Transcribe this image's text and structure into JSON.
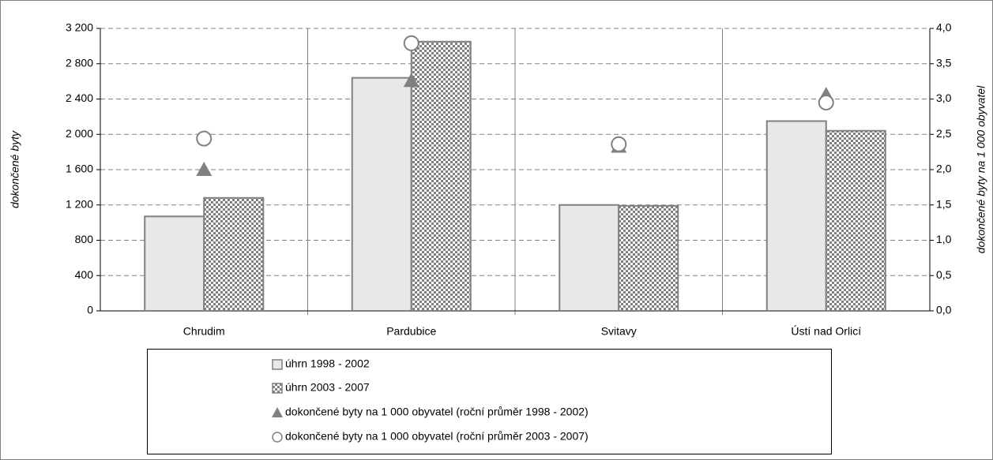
{
  "chart_data": {
    "type": "bar",
    "categories": [
      "Chrudim",
      "Pardubice",
      "Svitavy",
      "Ústí nad Orlicí"
    ],
    "y_label": "dokončené byty",
    "y2_label": "dokončené byty na 1 000 obyvatel",
    "ylim": [
      0,
      3200
    ],
    "yticks": [
      0,
      400,
      800,
      {
        "value": 1200,
        "label": "1 200"
      },
      {
        "value": 1600,
        "label": "1 600"
      },
      {
        "value": 2000,
        "label": "2 000"
      },
      {
        "value": 2400,
        "label": "2 400"
      },
      {
        "value": 2800,
        "label": "2 800"
      },
      {
        "value": 3200,
        "label": "3 200"
      }
    ],
    "y2lim": [
      0,
      4
    ],
    "y2ticks": [
      {
        "value": 0,
        "label": "0,0"
      },
      {
        "value": 0.5,
        "label": "0,5"
      },
      {
        "value": 1,
        "label": "1,0"
      },
      {
        "value": 1.5,
        "label": "1,5"
      },
      {
        "value": 2,
        "label": "2,0"
      },
      {
        "value": 2.5,
        "label": "2,5"
      },
      {
        "value": 3,
        "label": "3,0"
      },
      {
        "value": 3.5,
        "label": "3,5"
      },
      {
        "value": 4,
        "label": "4,0"
      }
    ],
    "grid": true,
    "series": [
      {
        "name": "úhrn 1998 - 2002",
        "type": "bar",
        "color": "#e8e8e8",
        "values": [
          1070,
          2640,
          1200,
          2150
        ]
      },
      {
        "name": "úhrn 2003 - 2007",
        "type": "bar",
        "color": "#808080",
        "pattern": "dots",
        "values": [
          1280,
          3050,
          1190,
          2040
        ]
      },
      {
        "name": "dokončené byty na 1 000 obyvatel (roční průměr 1998 - 2002)",
        "type": "scatter",
        "marker": "triangle",
        "color": "#808080",
        "axis": "y2",
        "values": [
          2.0,
          3.26,
          2.33,
          3.06
        ]
      },
      {
        "name": "dokončené byty na 1 000 obyvatel (roční průměr 2003 - 2007)",
        "type": "scatter",
        "marker": "circle-open",
        "color": "#808080",
        "axis": "y2",
        "values": [
          2.44,
          3.79,
          2.36,
          2.95
        ]
      }
    ]
  }
}
